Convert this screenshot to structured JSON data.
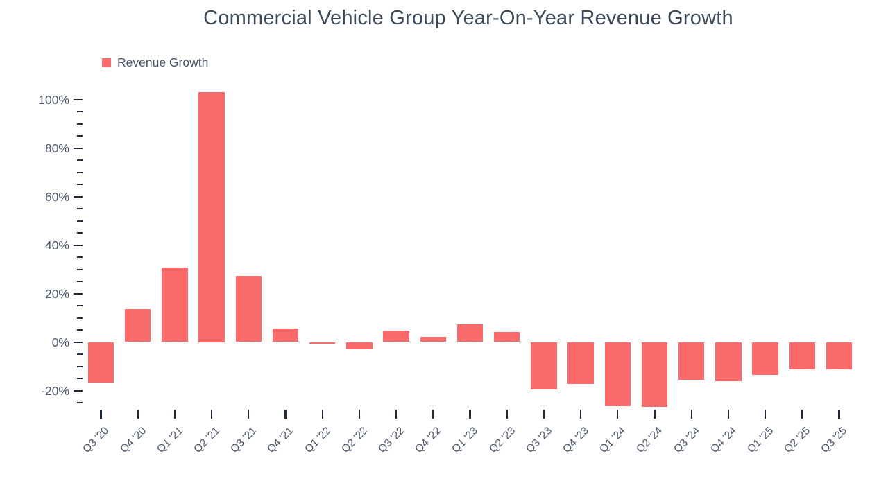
{
  "chart_data": {
    "type": "bar",
    "title": "Commercial Vehicle Group Year-On-Year Revenue Growth",
    "legend": [
      "Revenue Growth"
    ],
    "legend_position": "top-left",
    "categories": [
      "Q3 '20",
      "Q4 '20",
      "Q1 '21",
      "Q2 '21",
      "Q3 '21",
      "Q4 '21",
      "Q1 '22",
      "Q2 '22",
      "Q3 '22",
      "Q4 '22",
      "Q1 '23",
      "Q2 '23",
      "Q3 '23",
      "Q4 '23",
      "Q1 '24",
      "Q2 '24",
      "Q3 '24",
      "Q4 '24",
      "Q1 '25",
      "Q2 '25",
      "Q3 '25"
    ],
    "values": [
      -16.8,
      13.6,
      30.8,
      103.0,
      27.4,
      5.6,
      -0.6,
      -3.0,
      4.6,
      2.2,
      7.3,
      4.2,
      -19.6,
      -17.4,
      -26.4,
      -26.6,
      -15.7,
      -16.0,
      -13.5,
      -11.4,
      -11.4
    ],
    "unit": "%",
    "xlabel": "",
    "ylabel": "",
    "ylim": [
      -27.5,
      105
    ],
    "yticks_major": [
      100,
      80,
      60,
      40,
      20,
      0,
      -20
    ],
    "ytick_labels": [
      "100%",
      "80%",
      "60%",
      "40%",
      "20%",
      "0%",
      "-20%"
    ],
    "minor_tick_step": 5,
    "minor_tick_min": -25,
    "minor_tick_max": 95,
    "grid": false,
    "colors": {
      "bar": "#FC6B6B",
      "tick": "#1F2B3D",
      "axis_label": "#4A5568",
      "title": "#3D4A5C"
    }
  }
}
